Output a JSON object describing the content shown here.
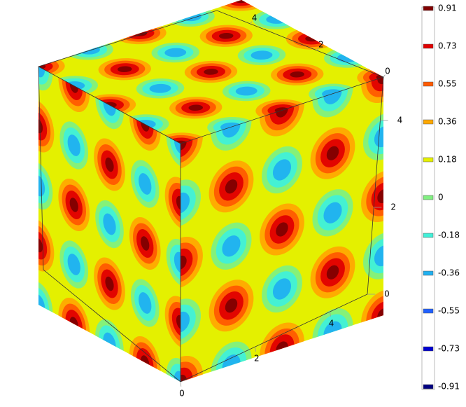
{
  "chart_data": {
    "type": "isosurface",
    "levels": [
      0.91,
      0.73,
      0.55,
      0.36,
      0.18,
      0,
      -0.18,
      -0.36,
      -0.55,
      -0.73,
      -0.91
    ],
    "colors": [
      "#800000",
      "#e00000",
      "#ff5a00",
      "#ffa800",
      "#e4f000",
      "#80f080",
      "#40f0d8",
      "#20b0f0",
      "#2060ff",
      "#0000d0",
      "#000080"
    ],
    "xlim": [
      0,
      5
    ],
    "xticks": [
      0,
      2,
      4
    ],
    "ylim": [
      0,
      5
    ],
    "yticks": [
      0,
      2,
      4
    ],
    "zlim": [
      0,
      5
    ],
    "zticks": [
      0,
      2,
      4
    ]
  }
}
